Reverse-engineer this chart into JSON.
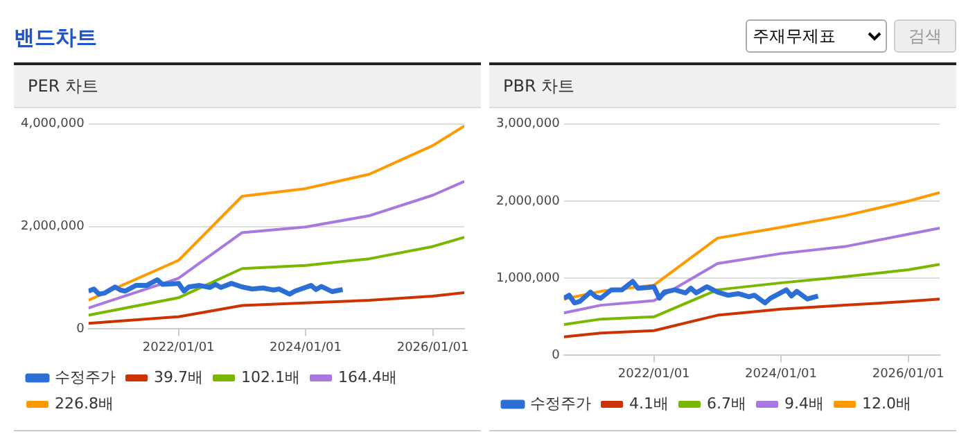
{
  "chart_data": [
    {
      "type": "other",
      "title": "밴드차트",
      "annotations": [
        "주재무제표",
        "검색"
      ]
    },
    {
      "type": "line",
      "title": "PER 차트",
      "xlim": [
        "2020-08",
        "2026-07"
      ],
      "xticks": [
        {
          "value": "2022-01-01",
          "label": "2022/01/01"
        },
        {
          "value": "2024-01-01",
          "label": "2024/01/01"
        },
        {
          "value": "2026-01-01",
          "label": "2026/01/01"
        }
      ],
      "ylim": [
        0,
        4000000
      ],
      "yticks": [
        {
          "value": 0,
          "label": "0"
        },
        {
          "value": 2000000,
          "label": "2,000,000"
        },
        {
          "value": 4000000,
          "label": "4,000,000"
        }
      ],
      "grid": "y",
      "legend": "bottom",
      "marker": "none",
      "line_style": "solid",
      "x": [
        "2020-08",
        "2020-09",
        "2020-10",
        "2020-11",
        "2021-01",
        "2021-02",
        "2021-03",
        "2021-05",
        "2021-07",
        "2021-09",
        "2021-10",
        "2021-12",
        "2022-01",
        "2022-02",
        "2022-03",
        "2022-05",
        "2022-07",
        "2022-08",
        "2022-09",
        "2022-11",
        "2023-01",
        "2023-03",
        "2023-05",
        "2023-07",
        "2023-08",
        "2023-10",
        "2023-11",
        "2024-02",
        "2024-03",
        "2024-04",
        "2024-06",
        "2024-08"
      ],
      "series": [
        {
          "name": "수정주가",
          "color": "#2b6fd6",
          "values": [
            740000,
            780000,
            680000,
            700000,
            820000,
            760000,
            740000,
            850000,
            850000,
            960000,
            870000,
            880000,
            890000,
            740000,
            820000,
            850000,
            810000,
            870000,
            810000,
            890000,
            820000,
            780000,
            800000,
            760000,
            780000,
            680000,
            740000,
            850000,
            770000,
            830000,
            730000,
            770000
          ]
        },
        {
          "name": "39.7배",
          "color": "#cc3300",
          "x": [
            "2020-08",
            "2022-01",
            "2023-01",
            "2024-01",
            "2025-01",
            "2026-01",
            "2026-07"
          ],
          "values": [
            110000,
            240000,
            460000,
            510000,
            560000,
            640000,
            710000
          ]
        },
        {
          "name": "102.1배",
          "color": "#7ab800",
          "x": [
            "2020-08",
            "2022-01",
            "2023-01",
            "2024-01",
            "2025-01",
            "2026-01",
            "2026-07"
          ],
          "values": [
            270000,
            610000,
            1180000,
            1240000,
            1370000,
            1610000,
            1790000
          ]
        },
        {
          "name": "164.4배",
          "color": "#a779e0",
          "x": [
            "2020-08",
            "2022-01",
            "2023-01",
            "2024-01",
            "2025-01",
            "2026-01",
            "2026-07"
          ],
          "values": [
            410000,
            990000,
            1880000,
            1990000,
            2210000,
            2610000,
            2880000
          ]
        },
        {
          "name": "226.8배",
          "color": "#ff9900",
          "x": [
            "2020-08",
            "2022-01",
            "2023-01",
            "2024-01",
            "2025-01",
            "2026-01",
            "2026-07"
          ],
          "values": [
            560000,
            1340000,
            2590000,
            2740000,
            3020000,
            3580000,
            3960000
          ]
        }
      ]
    },
    {
      "type": "line",
      "title": "PBR 차트",
      "xlim": [
        "2020-08",
        "2026-07"
      ],
      "xticks": [
        {
          "value": "2022-01-01",
          "label": "2022/01/01"
        },
        {
          "value": "2024-01-01",
          "label": "2024/01/01"
        },
        {
          "value": "2026-01-01",
          "label": "2026/01/01"
        }
      ],
      "ylim": [
        0,
        3000000
      ],
      "yticks": [
        {
          "value": 0,
          "label": "0"
        },
        {
          "value": 1000000,
          "label": "1,000,000"
        },
        {
          "value": 2000000,
          "label": "2,000,000"
        },
        {
          "value": 3000000,
          "label": "3,000,000"
        }
      ],
      "grid": "y",
      "legend": "bottom",
      "marker": "none",
      "line_style": "solid",
      "x": [
        "2020-08",
        "2020-09",
        "2020-10",
        "2020-11",
        "2021-01",
        "2021-02",
        "2021-03",
        "2021-05",
        "2021-07",
        "2021-09",
        "2021-10",
        "2021-12",
        "2022-01",
        "2022-02",
        "2022-03",
        "2022-05",
        "2022-07",
        "2022-08",
        "2022-09",
        "2022-11",
        "2023-01",
        "2023-03",
        "2023-05",
        "2023-07",
        "2023-08",
        "2023-10",
        "2023-11",
        "2024-02",
        "2024-03",
        "2024-04",
        "2024-06",
        "2024-08"
      ],
      "series": [
        {
          "name": "수정주가",
          "color": "#2b6fd6",
          "values": [
            740000,
            780000,
            680000,
            700000,
            820000,
            760000,
            740000,
            850000,
            850000,
            960000,
            870000,
            880000,
            890000,
            740000,
            820000,
            850000,
            810000,
            870000,
            810000,
            890000,
            820000,
            780000,
            800000,
            760000,
            780000,
            680000,
            740000,
            850000,
            770000,
            830000,
            730000,
            770000
          ]
        },
        {
          "name": "4.1배",
          "color": "#cc3300",
          "x": [
            "2020-08",
            "2021-03",
            "2022-01",
            "2023-01",
            "2024-01",
            "2025-01",
            "2026-01",
            "2026-07"
          ],
          "values": [
            240000,
            290000,
            320000,
            520000,
            600000,
            650000,
            700000,
            730000
          ]
        },
        {
          "name": "6.7배",
          "color": "#7ab800",
          "x": [
            "2020-08",
            "2021-03",
            "2022-01",
            "2023-01",
            "2024-01",
            "2025-01",
            "2026-01",
            "2026-07"
          ],
          "values": [
            400000,
            470000,
            500000,
            850000,
            940000,
            1020000,
            1110000,
            1180000
          ]
        },
        {
          "name": "9.4배",
          "color": "#a779e0",
          "x": [
            "2020-08",
            "2021-03",
            "2022-01",
            "2023-01",
            "2024-01",
            "2025-01",
            "2026-01",
            "2026-07"
          ],
          "values": [
            550000,
            650000,
            710000,
            1190000,
            1320000,
            1410000,
            1570000,
            1650000
          ]
        },
        {
          "name": "12.0배",
          "color": "#ff9900",
          "x": [
            "2020-08",
            "2021-03",
            "2022-01",
            "2023-01",
            "2024-01",
            "2025-01",
            "2026-01",
            "2026-07"
          ],
          "values": [
            730000,
            830000,
            910000,
            1520000,
            1660000,
            1810000,
            2000000,
            2110000
          ]
        }
      ]
    }
  ]
}
